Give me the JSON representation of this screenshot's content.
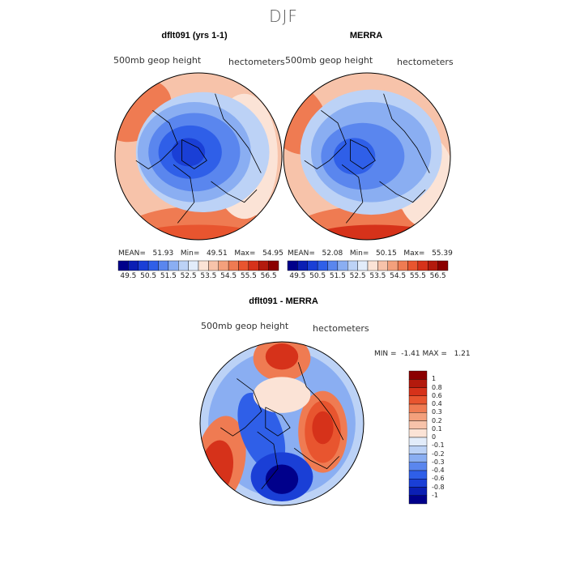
{
  "figure_title": "DJF",
  "colors": {
    "cool": [
      "#00008b",
      "#0b1fb4",
      "#1a3fd6",
      "#2f5fe8",
      "#5a86ee",
      "#8aaef2",
      "#bcd2f6",
      "#e2ecfa"
    ],
    "warm": [
      "#fbe3d6",
      "#f7c3aa",
      "#f3a07c",
      "#ef7b52",
      "#e8552f",
      "#d6321a",
      "#b31a0d",
      "#8b0000"
    ],
    "coastline": "#000000"
  },
  "chart_data": [
    {
      "type": "heatmap",
      "title": "dflt091 (yrs 1-1)",
      "field_label": "500mb geop height",
      "units": "hectometers",
      "projection": "north polar stereographic",
      "stats": {
        "mean_label": "MEAN=",
        "mean": "51.93",
        "min_label": "Min=",
        "min": "49.51",
        "max_label": "Max=",
        "max": "54.95"
      },
      "colorbar": {
        "orientation": "horizontal",
        "ticks": [
          "49.5",
          "50.5",
          "51.5",
          "52.5",
          "53.5",
          "54.5",
          "55.5",
          "56.5"
        ],
        "range": [
          49.0,
          57.0
        ],
        "levels": 16
      }
    },
    {
      "type": "heatmap",
      "title": "MERRA",
      "field_label": "500mb geop height",
      "units": "hectometers",
      "projection": "north polar stereographic",
      "stats": {
        "mean_label": "MEAN=",
        "mean": "52.08",
        "min_label": "Min=",
        "min": "50.15",
        "max_label": "Max=",
        "max": "55.39"
      },
      "colorbar": {
        "orientation": "horizontal",
        "ticks": [
          "49.5",
          "50.5",
          "51.5",
          "52.5",
          "53.5",
          "54.5",
          "55.5",
          "56.5"
        ],
        "range": [
          49.0,
          57.0
        ],
        "levels": 16
      }
    },
    {
      "type": "heatmap",
      "title": "dflt091 - MERRA",
      "field_label": "500mb geop height",
      "units": "hectometers",
      "projection": "north polar stereographic",
      "stats": {
        "min_label": "MIN =",
        "min": "-1.41",
        "max_label": "MAX =",
        "max": "1.21"
      },
      "colorbar": {
        "orientation": "vertical",
        "ticks": [
          "1",
          "0.8",
          "0.6",
          "0.4",
          "0.3",
          "0.2",
          "0.1",
          "0",
          "-0.1",
          "-0.2",
          "-0.3",
          "-0.4",
          "-0.6",
          "-0.8",
          "-1"
        ],
        "levels": 16
      }
    }
  ]
}
